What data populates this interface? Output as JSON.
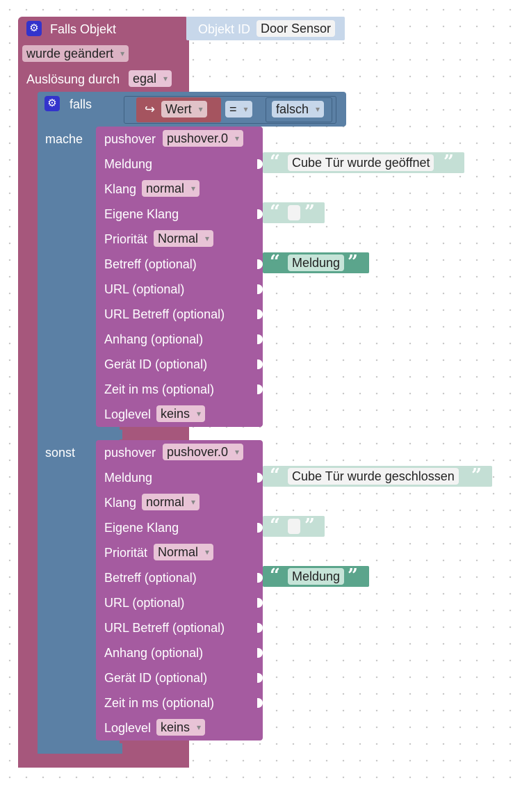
{
  "trigger": {
    "title": "Falls Objekt",
    "object_id_label": "Objekt ID",
    "object_id_value": "Door Sensor",
    "event_value": "wurde geändert",
    "trigger_by_label": "Auslösung durch",
    "trigger_by_value": "egal",
    "icon": "gear-icon",
    "color": "#a6577c"
  },
  "if_block": {
    "if_label": "falls",
    "do_label": "mache",
    "else_label": "sonst",
    "compare": {
      "left": "Wert",
      "operator": "=",
      "right": "falsch"
    },
    "color": "#5b80a5"
  },
  "pushover_blocks": [
    {
      "instance_label": "pushover",
      "instance_value": "pushover.0",
      "message_label": "Meldung",
      "message_value": "Cube Tür wurde geöffnet",
      "sound_label": "Klang",
      "sound_value": "normal",
      "custom_sound_label": "Eigene Klang",
      "priority_label": "Priorität",
      "priority_value": "Normal",
      "subject_label": "Betreff (optional)",
      "subject_value": "Meldung",
      "url_label": "URL (optional)",
      "url_title_label": "URL Betreff (optional)",
      "attachment_label": "Anhang (optional)",
      "device_label": "Gerät ID (optional)",
      "time_label": "Zeit in ms (optional)",
      "loglevel_label": "Loglevel",
      "loglevel_value": "keins"
    },
    {
      "instance_label": "pushover",
      "instance_value": "pushover.0",
      "message_label": "Meldung",
      "message_value": "Cube Tür wurde geschlossen",
      "sound_label": "Klang",
      "sound_value": "normal",
      "custom_sound_label": "Eigene Klang",
      "priority_label": "Priorität",
      "priority_value": "Normal",
      "subject_label": "Betreff (optional)",
      "subject_value": "Meldung",
      "url_label": "URL (optional)",
      "url_title_label": "URL Betreff (optional)",
      "attachment_label": "Anhang (optional)",
      "device_label": "Gerät ID (optional)",
      "time_label": "Zeit in ms (optional)",
      "loglevel_label": "Loglevel",
      "loglevel_value": "keins"
    }
  ],
  "colors": {
    "trigger": "#a6577c",
    "logic": "#5b80a5",
    "pushover": "#a55ba0",
    "text": "#5ba58c",
    "compare_var": "#a5545f"
  }
}
